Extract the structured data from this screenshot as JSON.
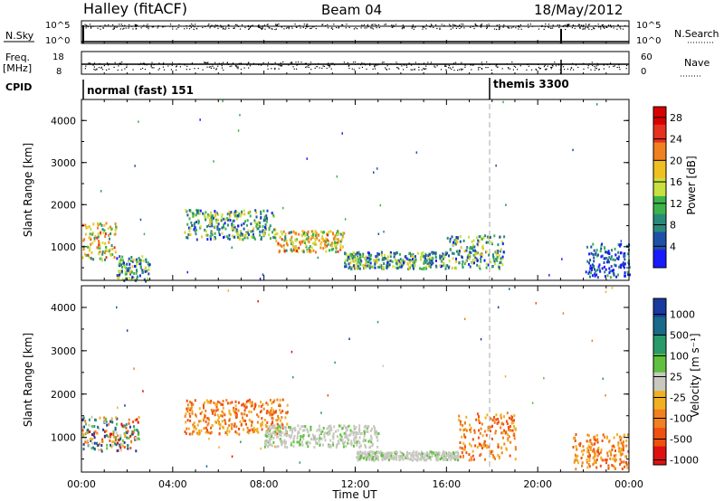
{
  "header": {
    "station": "Halley (fitACF)",
    "beam": "Beam 04",
    "date": "18/May/2012"
  },
  "summary_panels": {
    "nsky": {
      "label": "N.Sky",
      "ticks": [
        "10^5",
        "10^0"
      ]
    },
    "nsearch": {
      "label": "N.Search",
      "ticks": [
        "10^5",
        "10^0"
      ]
    },
    "freq": {
      "label_line1": "Freq.",
      "label_line2": "[MHz]",
      "ticks": [
        "18",
        "8"
      ]
    },
    "nave": {
      "label": "Nave",
      "ticks": [
        "60",
        "0"
      ]
    },
    "cpid": {
      "label": "CPID",
      "segments": [
        {
          "name": "normal (fast) 151",
          "start_hour": 0,
          "end_hour": 18
        },
        {
          "name": "themis 3300",
          "start_hour": 18,
          "end_hour": 24
        }
      ]
    }
  },
  "colors": {
    "power_scale": [
      "#1a1aff",
      "#1e50a8",
      "#2a8a7a",
      "#3cb44a",
      "#c8e040",
      "#f0c020",
      "#f08020",
      "#e83020",
      "#d80000"
    ],
    "velocity_scale": [
      "#1a3aa0",
      "#1a6a8a",
      "#2a9a6a",
      "#60c040",
      "#c8c8c0",
      "#f0b020",
      "#f08020",
      "#f05010",
      "#e01010"
    ]
  },
  "chart_data": [
    {
      "type": "heatmap",
      "title": "",
      "ylabel": "Slant Range [km]",
      "xlabel": "",
      "xlim": [
        0,
        24
      ],
      "ylim": [
        200,
        4500
      ],
      "yticks": [
        "1000",
        "2000",
        "3000",
        "4000"
      ],
      "colorbar": {
        "label": "Power [dB]",
        "ticks": [
          "4",
          "8",
          "12",
          "16",
          "20",
          "24",
          "28"
        ],
        "range": [
          0,
          30
        ]
      },
      "echo_bands": [
        {
          "start_hour": 0.0,
          "end_hour": 1.5,
          "range_min": 700,
          "range_max": 1600,
          "intensity": "high"
        },
        {
          "start_hour": 1.5,
          "end_hour": 3.0,
          "range_min": 200,
          "range_max": 800,
          "intensity": "medium"
        },
        {
          "start_hour": 4.5,
          "end_hour": 8.5,
          "range_min": 1200,
          "range_max": 1900,
          "intensity": "medium"
        },
        {
          "start_hour": 8.5,
          "end_hour": 11.5,
          "range_min": 900,
          "range_max": 1400,
          "intensity": "high"
        },
        {
          "start_hour": 11.5,
          "end_hour": 16.0,
          "range_min": 500,
          "range_max": 900,
          "intensity": "medium"
        },
        {
          "start_hour": 16.0,
          "end_hour": 18.5,
          "range_min": 500,
          "range_max": 1300,
          "intensity": "medium"
        },
        {
          "start_hour": 22.0,
          "end_hour": 24.0,
          "range_min": 300,
          "range_max": 1100,
          "intensity": "low"
        }
      ]
    },
    {
      "type": "heatmap",
      "title": "",
      "ylabel": "Slant Range [km]",
      "xlabel": "Time UT",
      "xlim": [
        0,
        24
      ],
      "ylim": [
        200,
        4500
      ],
      "xticks": [
        "00:00",
        "04:00",
        "08:00",
        "12:00",
        "16:00",
        "20:00",
        "00:00"
      ],
      "yticks": [
        "1000",
        "2000",
        "3000",
        "4000"
      ],
      "colorbar": {
        "label": "Velocity [m s⁻¹]",
        "ticks": [
          "1000",
          "500",
          "100",
          "25",
          "-25",
          "-100",
          "-500",
          "-1000"
        ],
        "range": [
          -1000,
          1000
        ]
      },
      "echo_bands": [
        {
          "start_hour": 0.0,
          "end_hour": 2.5,
          "range_min": 700,
          "range_max": 1500,
          "velocity": "mixed"
        },
        {
          "start_hour": 4.5,
          "end_hour": 9.0,
          "range_min": 1100,
          "range_max": 1900,
          "velocity": "negative"
        },
        {
          "start_hour": 8.0,
          "end_hour": 13.0,
          "range_min": 800,
          "range_max": 1300,
          "velocity": "near-zero"
        },
        {
          "start_hour": 12.0,
          "end_hour": 16.5,
          "range_min": 500,
          "range_max": 700,
          "velocity": "near-zero"
        },
        {
          "start_hour": 16.5,
          "end_hour": 19.0,
          "range_min": 500,
          "range_max": 1600,
          "velocity": "negative"
        },
        {
          "start_hour": 21.5,
          "end_hour": 24.0,
          "range_min": 300,
          "range_max": 1100,
          "velocity": "negative"
        }
      ]
    }
  ]
}
